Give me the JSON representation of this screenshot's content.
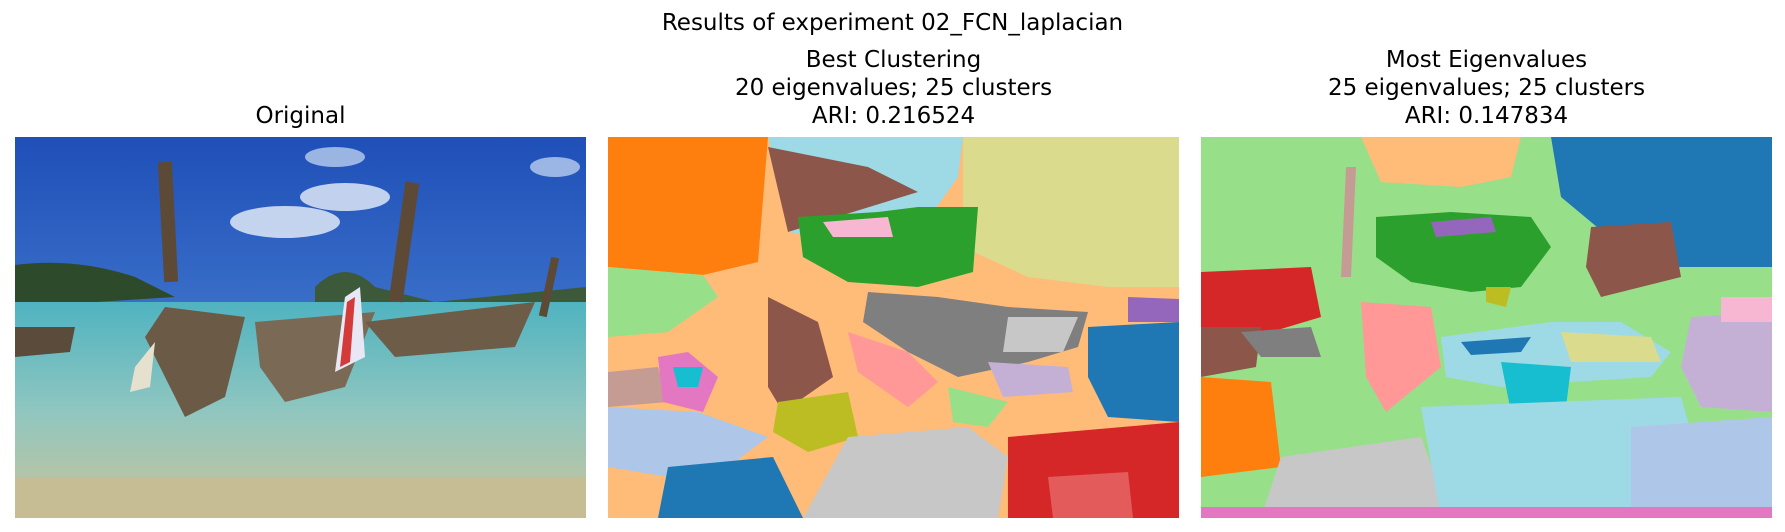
{
  "figure": {
    "suptitle": "Results of experiment 02_FCN_laplacian",
    "panels": [
      {
        "title_lines": [
          "Original"
        ]
      },
      {
        "title_lines": [
          "Best Clustering",
          "20 eigenvalues; 25 clusters",
          "ARI: 0.216524"
        ]
      },
      {
        "title_lines": [
          "Most Eigenvalues",
          "25 eigenvalues; 25 clusters",
          "ARI: 0.147834"
        ]
      }
    ]
  }
}
